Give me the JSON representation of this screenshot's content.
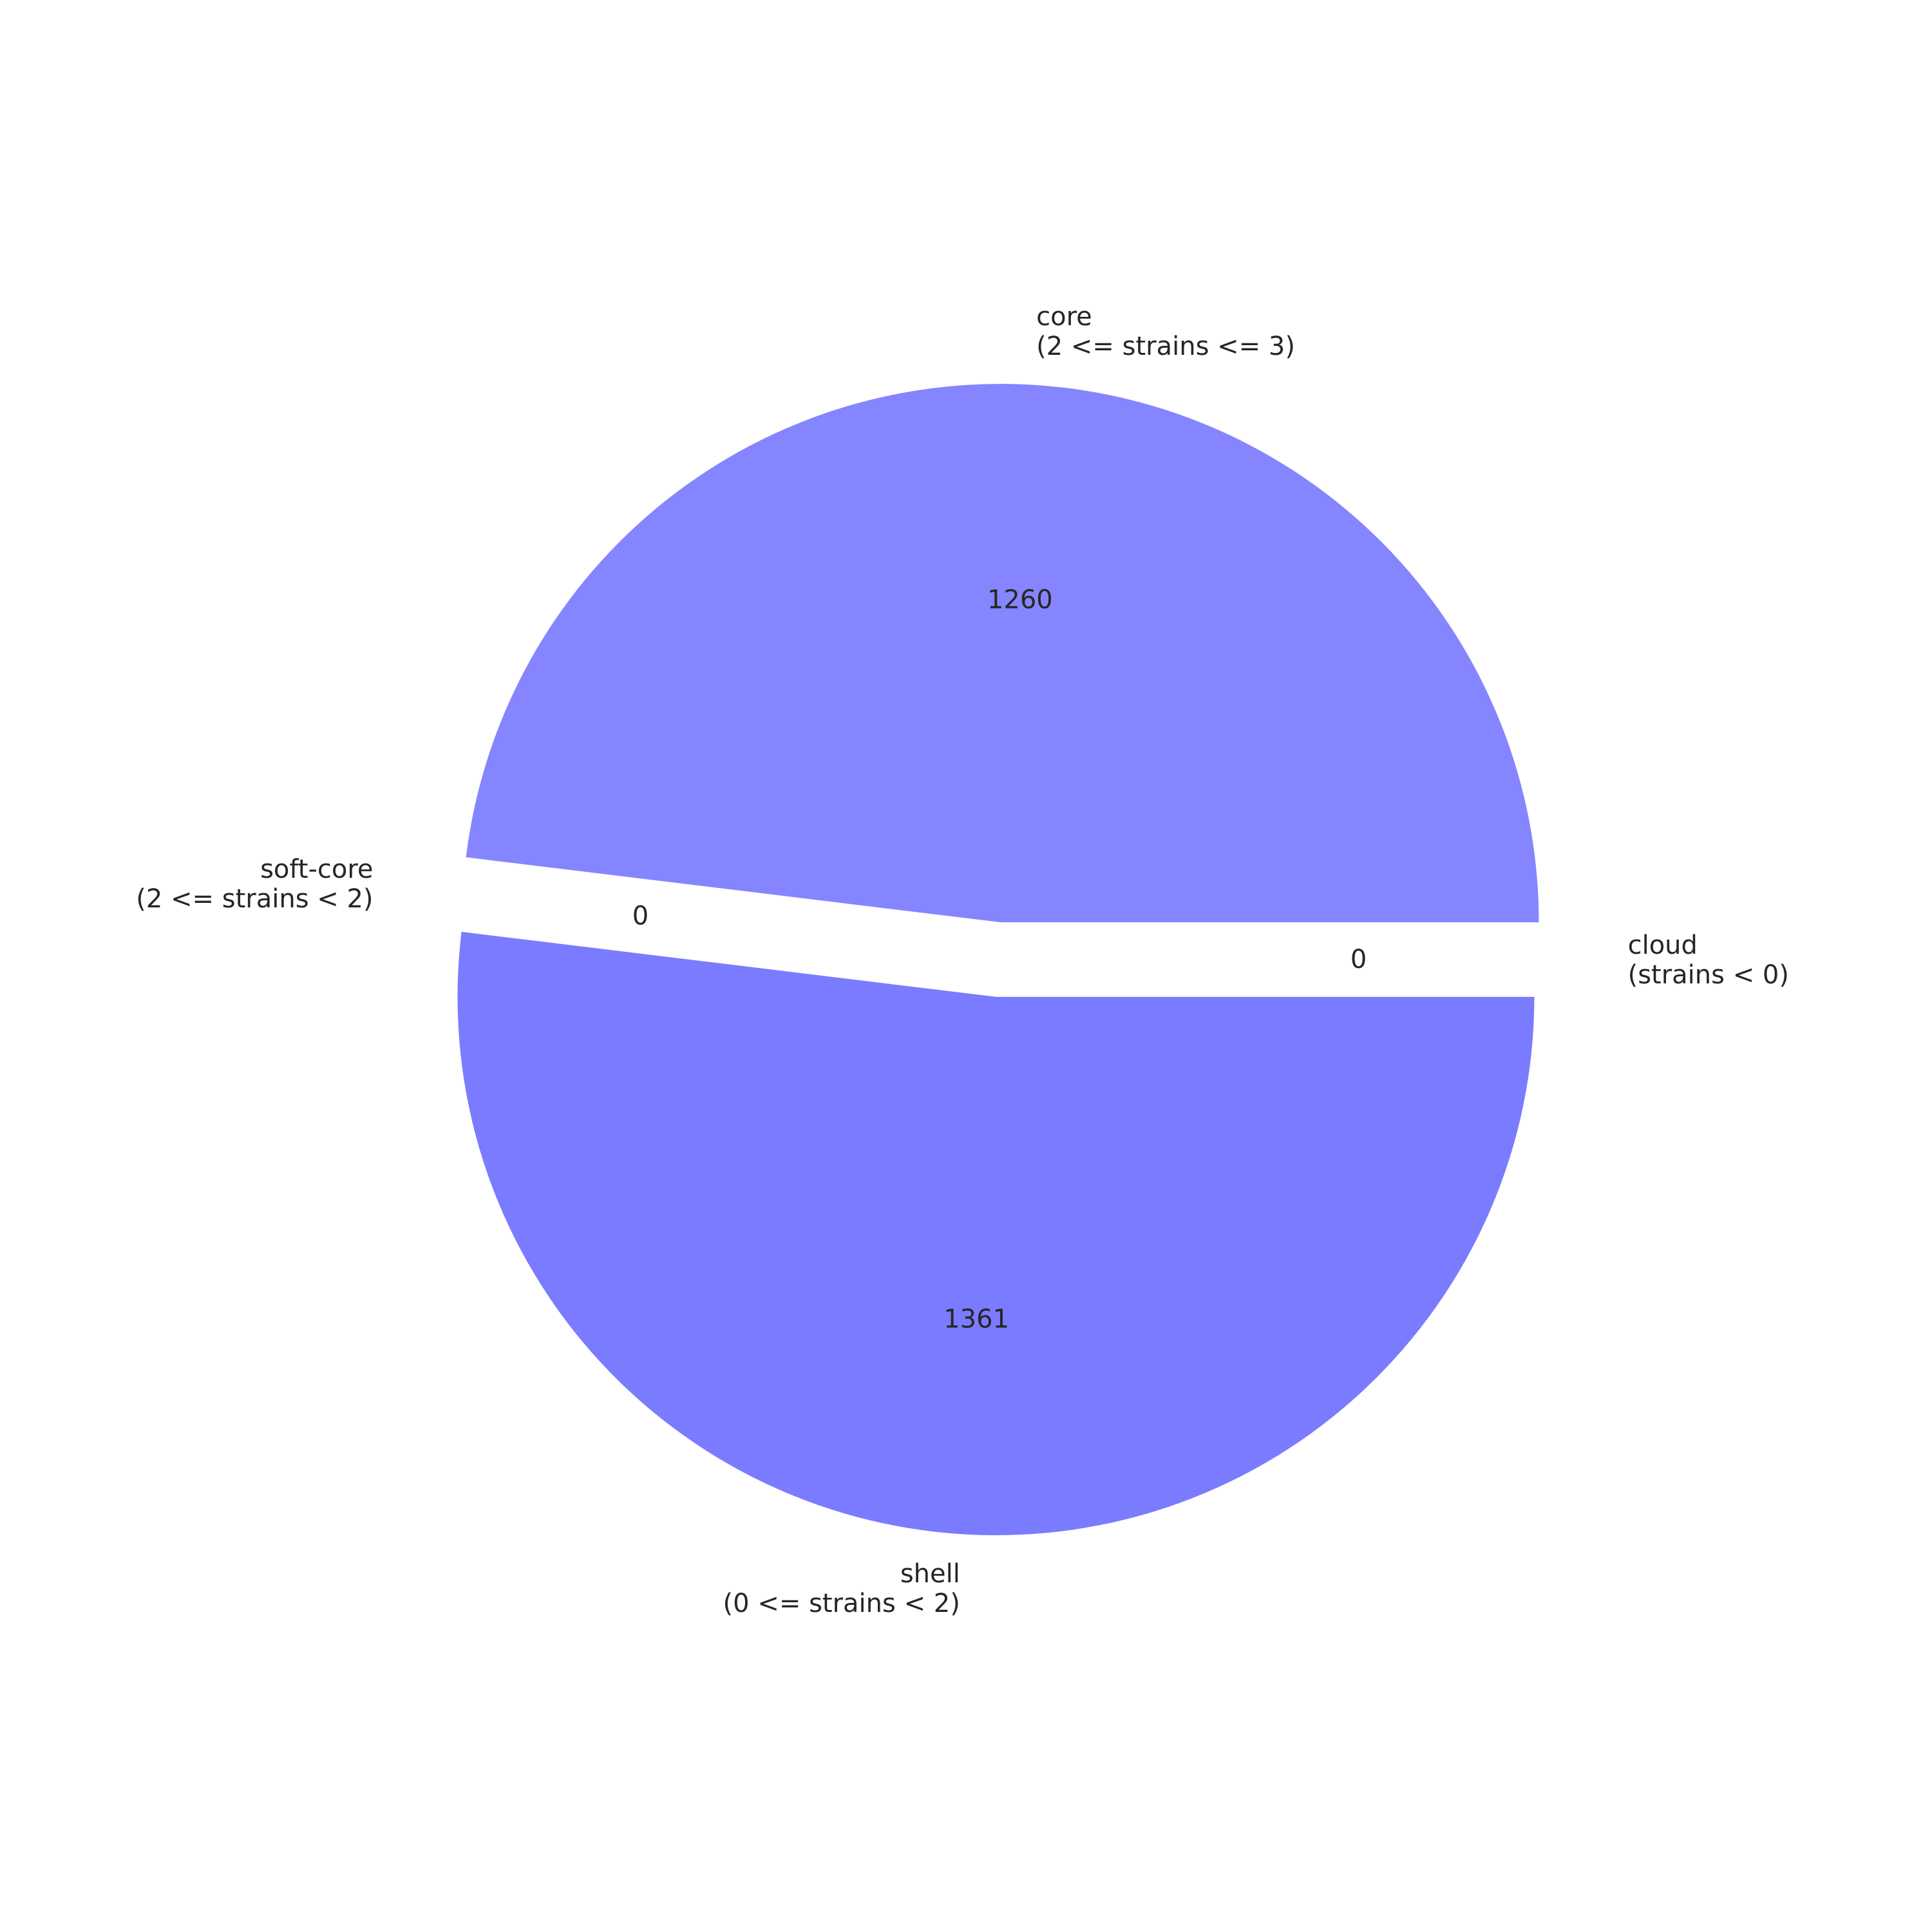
{
  "chart_data": {
    "type": "pie",
    "slices": [
      {
        "label": "core",
        "sublabel": "(2 <= strains <= 3)",
        "value": 1260,
        "value_label": "1260",
        "color": "#8585ff"
      },
      {
        "label": "soft-core",
        "sublabel": "(2 <= strains < 2)",
        "value": 0,
        "value_label": "0",
        "color": "#8080ff"
      },
      {
        "label": "shell",
        "sublabel": "(0 <= strains < 2)",
        "value": 1361,
        "value_label": "1361",
        "color": "#7b7bff"
      },
      {
        "label": "cloud",
        "sublabel": "(strains < 0)",
        "value": 0,
        "value_label": "0",
        "color": "#7575ff"
      }
    ]
  }
}
